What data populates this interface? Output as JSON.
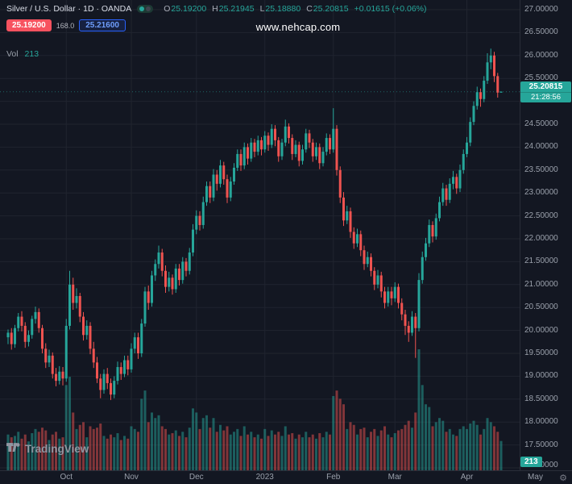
{
  "header": {
    "symbol_title": "Silver / U.S. Dollar · 1D · OANDA",
    "ohlc_labels": {
      "o": "O",
      "h": "H",
      "l": "L",
      "c": "C"
    },
    "ohlc": {
      "o": "25.19200",
      "h": "25.21945",
      "l": "25.18880",
      "c": "25.20815"
    },
    "change": "+0.01615 (+0.06%)",
    "sell_price": "25.19200",
    "spread": "168.0",
    "buy_price": "25.21600",
    "volume_label": "Vol",
    "volume_value": "213"
  },
  "watermark": "www.nehcap.com",
  "price_axis": {
    "ticks": [
      "27.00000",
      "26.50000",
      "26.00000",
      "25.50000",
      "24.50000",
      "24.00000",
      "23.50000",
      "23.00000",
      "22.50000",
      "22.00000",
      "21.50000",
      "21.00000",
      "20.50000",
      "20.00000",
      "19.50000",
      "19.00000",
      "18.50000",
      "18.00000",
      "17.50000",
      "17.00000"
    ],
    "last_price": "25.20815",
    "countdown": "21:28:56",
    "volume_badge": "213"
  },
  "time_axis": {
    "ticks": [
      {
        "label": "Oct",
        "index": 17
      },
      {
        "label": "Nov",
        "index": 36
      },
      {
        "label": "Dec",
        "index": 55
      },
      {
        "label": "2023",
        "index": 75
      },
      {
        "label": "Feb",
        "index": 95
      },
      {
        "label": "Mar",
        "index": 113
      },
      {
        "label": "Apr",
        "index": 134
      },
      {
        "label": "May",
        "index": 154
      }
    ]
  },
  "footer": {
    "logo_text": "TradingView"
  },
  "icons": {
    "settings_gear": "⚙"
  },
  "colors": {
    "background": "#131722",
    "grid": "#20242f",
    "panel_border": "#2a2e39",
    "text_primary": "#d8dce6",
    "text_muted": "#9aa0ab",
    "up": "#26a69a",
    "down": "#ef5350",
    "sell_red": "#f7525f",
    "buy_blue": "#2962ff",
    "badge_green": "#26a69a",
    "watermark_color": "#ffffff"
  },
  "chart_data": {
    "type": "candlestick",
    "symbol": "Silver / U.S. Dollar",
    "interval": "1D",
    "exchange": "OANDA",
    "title": "Silver / U.S. Dollar · 1D · OANDA",
    "price_range": [
      17,
      27
    ],
    "grid_step": 0.5,
    "candles_format": [
      "open",
      "high",
      "low",
      "close",
      "volume"
    ],
    "candles": [
      [
        19.85,
        20.02,
        19.7,
        19.95,
        260
      ],
      [
        19.95,
        20.05,
        19.58,
        19.7,
        240
      ],
      [
        19.7,
        20.12,
        19.62,
        20.05,
        250
      ],
      [
        20.05,
        20.38,
        19.98,
        20.3,
        280
      ],
      [
        20.3,
        20.42,
        19.98,
        20.1,
        230
      ],
      [
        20.1,
        20.18,
        19.62,
        19.75,
        260
      ],
      [
        19.75,
        20.0,
        19.65,
        19.9,
        210
      ],
      [
        19.9,
        20.32,
        19.82,
        20.25,
        270
      ],
      [
        20.25,
        20.52,
        20.15,
        20.4,
        300
      ],
      [
        20.4,
        20.48,
        19.95,
        20.05,
        280
      ],
      [
        20.05,
        20.12,
        19.5,
        19.6,
        310
      ],
      [
        19.6,
        19.72,
        19.18,
        19.3,
        290
      ],
      [
        19.3,
        19.58,
        19.2,
        19.45,
        220
      ],
      [
        19.45,
        19.52,
        18.95,
        19.05,
        260
      ],
      [
        19.05,
        19.18,
        18.78,
        18.9,
        280
      ],
      [
        18.9,
        19.22,
        18.82,
        19.1,
        230
      ],
      [
        19.1,
        19.2,
        18.8,
        18.95,
        240
      ],
      [
        18.95,
        20.25,
        18.88,
        20.1,
        620
      ],
      [
        20.1,
        21.3,
        20.02,
        21.0,
        680
      ],
      [
        21.0,
        21.15,
        20.45,
        20.6,
        420
      ],
      [
        20.6,
        20.92,
        20.48,
        20.75,
        300
      ],
      [
        20.75,
        20.82,
        20.18,
        20.3,
        330
      ],
      [
        20.3,
        20.4,
        19.78,
        19.9,
        350
      ],
      [
        19.9,
        20.22,
        19.8,
        20.1,
        240
      ],
      [
        20.1,
        20.18,
        19.48,
        19.6,
        320
      ],
      [
        19.6,
        19.75,
        19.18,
        19.3,
        300
      ],
      [
        19.3,
        19.42,
        18.85,
        18.95,
        310
      ],
      [
        18.95,
        19.05,
        18.52,
        18.7,
        340
      ],
      [
        18.7,
        19.15,
        18.62,
        19.05,
        250
      ],
      [
        19.05,
        19.18,
        18.72,
        18.85,
        230
      ],
      [
        18.85,
        18.95,
        18.48,
        18.6,
        260
      ],
      [
        18.6,
        19.0,
        18.52,
        18.9,
        240
      ],
      [
        18.9,
        19.32,
        18.82,
        19.2,
        270
      ],
      [
        19.2,
        19.3,
        18.92,
        19.05,
        220
      ],
      [
        19.05,
        19.45,
        18.98,
        19.35,
        250
      ],
      [
        19.35,
        19.45,
        19.02,
        19.15,
        230
      ],
      [
        19.15,
        19.72,
        19.08,
        19.6,
        320
      ],
      [
        19.6,
        19.95,
        19.5,
        19.85,
        300
      ],
      [
        19.85,
        19.95,
        19.38,
        19.5,
        280
      ],
      [
        19.5,
        20.25,
        19.42,
        20.15,
        520
      ],
      [
        20.15,
        20.95,
        20.08,
        20.85,
        580
      ],
      [
        20.85,
        20.98,
        20.45,
        20.6,
        350
      ],
      [
        20.6,
        21.3,
        20.52,
        21.2,
        420
      ],
      [
        21.2,
        21.55,
        21.08,
        21.45,
        380
      ],
      [
        21.45,
        21.85,
        21.35,
        21.7,
        400
      ],
      [
        21.7,
        21.78,
        21.18,
        21.3,
        320
      ],
      [
        21.3,
        21.42,
        20.82,
        20.95,
        300
      ],
      [
        20.95,
        21.28,
        20.85,
        21.15,
        260
      ],
      [
        21.15,
        21.22,
        20.78,
        20.9,
        270
      ],
      [
        20.9,
        21.45,
        20.82,
        21.35,
        290
      ],
      [
        21.35,
        21.45,
        20.98,
        21.1,
        250
      ],
      [
        21.1,
        21.6,
        21.02,
        21.5,
        280
      ],
      [
        21.5,
        21.58,
        21.18,
        21.3,
        240
      ],
      [
        21.3,
        21.8,
        21.22,
        21.7,
        310
      ],
      [
        21.7,
        22.32,
        21.62,
        22.2,
        450
      ],
      [
        22.2,
        22.62,
        22.1,
        22.5,
        420
      ],
      [
        22.5,
        22.6,
        22.18,
        22.3,
        300
      ],
      [
        22.3,
        22.92,
        22.22,
        22.8,
        380
      ],
      [
        22.8,
        23.25,
        22.72,
        23.15,
        400
      ],
      [
        23.15,
        23.25,
        22.78,
        22.9,
        310
      ],
      [
        22.9,
        23.52,
        22.82,
        23.4,
        380
      ],
      [
        23.4,
        23.5,
        23.05,
        23.2,
        280
      ],
      [
        23.2,
        23.72,
        23.12,
        23.6,
        330
      ],
      [
        23.6,
        23.68,
        23.18,
        23.3,
        290
      ],
      [
        23.3,
        23.4,
        22.78,
        22.9,
        320
      ],
      [
        22.9,
        23.35,
        22.82,
        23.25,
        260
      ],
      [
        23.25,
        23.65,
        23.18,
        23.55,
        280
      ],
      [
        23.55,
        23.95,
        23.48,
        23.85,
        300
      ],
      [
        23.85,
        23.95,
        23.48,
        23.6,
        250
      ],
      [
        23.6,
        24.1,
        23.52,
        24.0,
        320
      ],
      [
        24.0,
        24.08,
        23.62,
        23.75,
        260
      ],
      [
        23.75,
        24.2,
        23.68,
        24.1,
        280
      ],
      [
        24.1,
        24.18,
        23.78,
        23.9,
        240
      ],
      [
        23.9,
        24.25,
        23.82,
        24.15,
        260
      ],
      [
        24.15,
        24.22,
        23.82,
        23.95,
        230
      ],
      [
        23.95,
        24.35,
        23.88,
        24.25,
        300
      ],
      [
        24.25,
        24.32,
        23.92,
        24.05,
        250
      ],
      [
        24.05,
        24.5,
        23.98,
        24.4,
        290
      ],
      [
        24.4,
        24.48,
        24.02,
        24.15,
        260
      ],
      [
        24.15,
        24.22,
        23.68,
        23.8,
        280
      ],
      [
        23.8,
        24.18,
        23.72,
        24.1,
        250
      ],
      [
        24.1,
        24.6,
        24.02,
        24.45,
        320
      ],
      [
        24.45,
        24.52,
        24.08,
        24.2,
        260
      ],
      [
        24.2,
        24.28,
        23.72,
        23.85,
        270
      ],
      [
        23.85,
        24.15,
        23.78,
        24.05,
        230
      ],
      [
        24.05,
        24.12,
        23.58,
        23.7,
        260
      ],
      [
        23.7,
        24.05,
        23.62,
        23.95,
        240
      ],
      [
        23.95,
        24.4,
        23.88,
        24.3,
        280
      ],
      [
        24.3,
        24.38,
        23.98,
        24.1,
        240
      ],
      [
        24.1,
        24.18,
        23.68,
        23.8,
        260
      ],
      [
        23.8,
        24.1,
        23.72,
        24.0,
        230
      ],
      [
        24.0,
        24.08,
        23.52,
        23.65,
        270
      ],
      [
        23.65,
        24.0,
        23.58,
        23.9,
        240
      ],
      [
        23.9,
        24.3,
        23.82,
        24.2,
        280
      ],
      [
        24.2,
        24.28,
        23.85,
        23.95,
        260
      ],
      [
        23.95,
        24.85,
        23.88,
        24.4,
        540
      ],
      [
        24.4,
        24.48,
        23.38,
        23.5,
        580
      ],
      [
        23.5,
        23.58,
        22.78,
        22.9,
        520
      ],
      [
        22.9,
        23.02,
        22.28,
        22.4,
        480
      ],
      [
        22.4,
        22.72,
        22.32,
        22.6,
        300
      ],
      [
        22.6,
        22.68,
        22.02,
        22.15,
        350
      ],
      [
        22.15,
        22.25,
        21.78,
        21.9,
        330
      ],
      [
        21.9,
        22.22,
        21.82,
        22.1,
        260
      ],
      [
        22.1,
        22.18,
        21.62,
        21.75,
        300
      ],
      [
        21.75,
        21.85,
        21.32,
        21.45,
        310
      ],
      [
        21.45,
        21.72,
        21.38,
        21.6,
        240
      ],
      [
        21.6,
        21.68,
        21.18,
        21.3,
        280
      ],
      [
        21.3,
        21.38,
        20.88,
        21.0,
        300
      ],
      [
        21.0,
        21.32,
        20.92,
        21.2,
        250
      ],
      [
        21.2,
        21.28,
        20.72,
        20.85,
        290
      ],
      [
        20.85,
        20.95,
        20.48,
        20.6,
        320
      ],
      [
        20.6,
        20.95,
        20.52,
        20.85,
        260
      ],
      [
        20.85,
        20.95,
        20.55,
        20.7,
        240
      ],
      [
        20.7,
        21.05,
        20.62,
        20.95,
        270
      ],
      [
        20.95,
        21.02,
        20.48,
        20.6,
        290
      ],
      [
        20.6,
        20.7,
        20.22,
        20.35,
        300
      ],
      [
        20.35,
        20.45,
        19.9,
        20.1,
        330
      ],
      [
        20.1,
        20.2,
        19.75,
        19.95,
        360
      ],
      [
        19.95,
        20.42,
        19.88,
        20.3,
        310
      ],
      [
        20.3,
        20.38,
        19.4,
        20.05,
        420
      ],
      [
        20.05,
        21.25,
        19.98,
        21.1,
        880
      ],
      [
        21.1,
        21.72,
        21.02,
        21.6,
        620
      ],
      [
        21.6,
        22.02,
        21.52,
        21.9,
        480
      ],
      [
        21.9,
        22.42,
        21.82,
        22.3,
        460
      ],
      [
        22.3,
        22.38,
        21.92,
        22.05,
        320
      ],
      [
        22.05,
        22.55,
        21.98,
        22.45,
        350
      ],
      [
        22.45,
        22.92,
        22.38,
        22.8,
        380
      ],
      [
        22.8,
        23.22,
        22.72,
        23.1,
        360
      ],
      [
        23.1,
        23.18,
        22.72,
        22.85,
        280
      ],
      [
        22.85,
        23.32,
        22.78,
        23.2,
        300
      ],
      [
        23.2,
        23.48,
        23.08,
        23.35,
        260
      ],
      [
        23.35,
        23.42,
        22.98,
        23.1,
        250
      ],
      [
        23.1,
        23.62,
        23.02,
        23.5,
        300
      ],
      [
        23.5,
        23.95,
        23.42,
        23.85,
        320
      ],
      [
        23.85,
        24.22,
        23.78,
        24.1,
        300
      ],
      [
        24.1,
        24.65,
        24.02,
        24.55,
        340
      ],
      [
        24.55,
        25.0,
        24.48,
        24.9,
        360
      ],
      [
        24.9,
        25.32,
        24.82,
        25.2,
        330
      ],
      [
        25.2,
        25.28,
        24.88,
        25.05,
        260
      ],
      [
        25.05,
        25.55,
        24.98,
        25.45,
        300
      ],
      [
        25.45,
        26.05,
        25.38,
        25.85,
        380
      ],
      [
        25.85,
        26.15,
        25.7,
        26.0,
        350
      ],
      [
        26.0,
        26.08,
        25.42,
        25.55,
        320
      ],
      [
        25.55,
        25.62,
        25.08,
        25.19,
        280
      ],
      [
        25.192,
        25.21945,
        25.1888,
        25.20815,
        213
      ]
    ]
  }
}
